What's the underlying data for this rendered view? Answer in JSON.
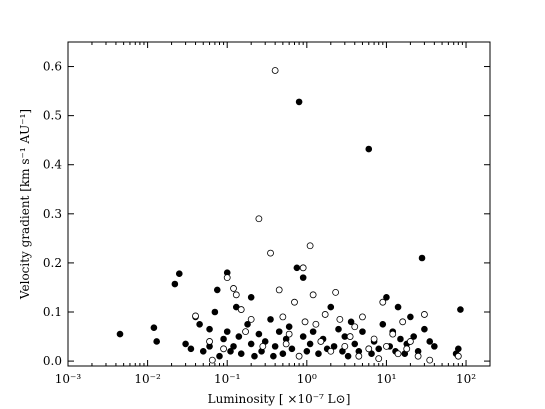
{
  "chart_data": {
    "type": "scatter",
    "title": "",
    "xlabel": "Luminosity [ ×10⁻⁷ L⊙]",
    "ylabel": "Velocity gradient [km s⁻¹ AU⁻¹]",
    "xscale": "log",
    "xlim": [
      0.001,
      200
    ],
    "ylim": [
      -0.01,
      0.65
    ],
    "x_ticks": [
      0.001,
      0.01,
      0.1,
      1,
      10,
      100
    ],
    "x_tick_labels": [
      "10⁻³",
      "10⁻²",
      "10⁻¹",
      "10⁰",
      "10¹",
      "10²"
    ],
    "y_ticks": [
      0.0,
      0.1,
      0.2,
      0.3,
      0.4,
      0.5,
      0.6
    ],
    "y_tick_labels": [
      "0.0",
      "0.1",
      "0.2",
      "0.3",
      "0.4",
      "0.5",
      "0.6"
    ],
    "grid": false,
    "series": [
      {
        "marker": "filled-circle",
        "color": "#000000",
        "points": [
          [
            0.0045,
            0.055
          ],
          [
            0.012,
            0.068
          ],
          [
            0.013,
            0.04
          ],
          [
            0.022,
            0.157
          ],
          [
            0.025,
            0.178
          ],
          [
            0.03,
            0.035
          ],
          [
            0.035,
            0.025
          ],
          [
            0.04,
            0.09
          ],
          [
            0.045,
            0.075
          ],
          [
            0.05,
            0.02
          ],
          [
            0.06,
            0.065
          ],
          [
            0.06,
            0.03
          ],
          [
            0.07,
            0.1
          ],
          [
            0.075,
            0.145
          ],
          [
            0.08,
            0.01
          ],
          [
            0.09,
            0.045
          ],
          [
            0.1,
            0.18
          ],
          [
            0.1,
            0.06
          ],
          [
            0.11,
            0.02
          ],
          [
            0.12,
            0.03
          ],
          [
            0.13,
            0.11
          ],
          [
            0.14,
            0.05
          ],
          [
            0.15,
            0.015
          ],
          [
            0.18,
            0.075
          ],
          [
            0.2,
            0.13
          ],
          [
            0.2,
            0.035
          ],
          [
            0.22,
            0.01
          ],
          [
            0.25,
            0.055
          ],
          [
            0.27,
            0.02
          ],
          [
            0.3,
            0.04
          ],
          [
            0.35,
            0.085
          ],
          [
            0.38,
            0.01
          ],
          [
            0.4,
            0.03
          ],
          [
            0.45,
            0.06
          ],
          [
            0.5,
            0.015
          ],
          [
            0.55,
            0.045
          ],
          [
            0.6,
            0.07
          ],
          [
            0.65,
            0.025
          ],
          [
            0.75,
            0.19
          ],
          [
            0.8,
            0.528
          ],
          [
            0.9,
            0.17
          ],
          [
            0.9,
            0.05
          ],
          [
            1.0,
            0.02
          ],
          [
            1.1,
            0.035
          ],
          [
            1.2,
            0.06
          ],
          [
            1.4,
            0.015
          ],
          [
            1.6,
            0.045
          ],
          [
            1.8,
            0.025
          ],
          [
            2.0,
            0.11
          ],
          [
            2.2,
            0.03
          ],
          [
            2.5,
            0.065
          ],
          [
            2.8,
            0.02
          ],
          [
            3.0,
            0.05
          ],
          [
            3.3,
            0.01
          ],
          [
            3.6,
            0.08
          ],
          [
            4.0,
            0.035
          ],
          [
            4.5,
            0.02
          ],
          [
            5.0,
            0.06
          ],
          [
            6.0,
            0.432
          ],
          [
            6.5,
            0.015
          ],
          [
            7.0,
            0.04
          ],
          [
            8.0,
            0.025
          ],
          [
            9.0,
            0.075
          ],
          [
            10.0,
            0.13
          ],
          [
            11.0,
            0.03
          ],
          [
            12.0,
            0.06
          ],
          [
            13.0,
            0.02
          ],
          [
            14.0,
            0.11
          ],
          [
            15.0,
            0.045
          ],
          [
            17.0,
            0.015
          ],
          [
            18.0,
            0.035
          ],
          [
            20.0,
            0.09
          ],
          [
            22.0,
            0.05
          ],
          [
            25.0,
            0.02
          ],
          [
            28.0,
            0.21
          ],
          [
            30.0,
            0.065
          ],
          [
            35.0,
            0.04
          ],
          [
            40.0,
            0.03
          ],
          [
            75.0,
            0.015
          ],
          [
            80.0,
            0.025
          ],
          [
            85.0,
            0.105
          ]
        ]
      },
      {
        "marker": "open-circle",
        "color": "#000000",
        "points": [
          [
            0.04,
            0.092
          ],
          [
            0.06,
            0.04
          ],
          [
            0.065,
            0.002
          ],
          [
            0.09,
            0.025
          ],
          [
            0.1,
            0.17
          ],
          [
            0.12,
            0.148
          ],
          [
            0.13,
            0.135
          ],
          [
            0.15,
            0.105
          ],
          [
            0.17,
            0.06
          ],
          [
            0.2,
            0.085
          ],
          [
            0.25,
            0.29
          ],
          [
            0.28,
            0.03
          ],
          [
            0.35,
            0.22
          ],
          [
            0.4,
            0.592
          ],
          [
            0.45,
            0.145
          ],
          [
            0.5,
            0.09
          ],
          [
            0.55,
            0.035
          ],
          [
            0.6,
            0.055
          ],
          [
            0.7,
            0.12
          ],
          [
            0.8,
            0.01
          ],
          [
            0.9,
            0.19
          ],
          [
            0.95,
            0.08
          ],
          [
            1.1,
            0.235
          ],
          [
            1.2,
            0.135
          ],
          [
            1.3,
            0.075
          ],
          [
            1.5,
            0.04
          ],
          [
            1.7,
            0.095
          ],
          [
            2.0,
            0.02
          ],
          [
            2.3,
            0.14
          ],
          [
            2.6,
            0.085
          ],
          [
            3.0,
            0.03
          ],
          [
            3.5,
            0.05
          ],
          [
            4.0,
            0.07
          ],
          [
            4.5,
            0.01
          ],
          [
            5.0,
            0.09
          ],
          [
            6.0,
            0.025
          ],
          [
            7.0,
            0.045
          ],
          [
            8.0,
            0.005
          ],
          [
            9.0,
            0.12
          ],
          [
            10.0,
            0.03
          ],
          [
            12.0,
            0.055
          ],
          [
            14.0,
            0.015
          ],
          [
            16.0,
            0.08
          ],
          [
            18.0,
            0.025
          ],
          [
            20.0,
            0.04
          ],
          [
            25.0,
            0.01
          ],
          [
            30.0,
            0.095
          ],
          [
            35.0,
            0.002
          ],
          [
            80.0,
            0.01
          ]
        ]
      }
    ]
  }
}
